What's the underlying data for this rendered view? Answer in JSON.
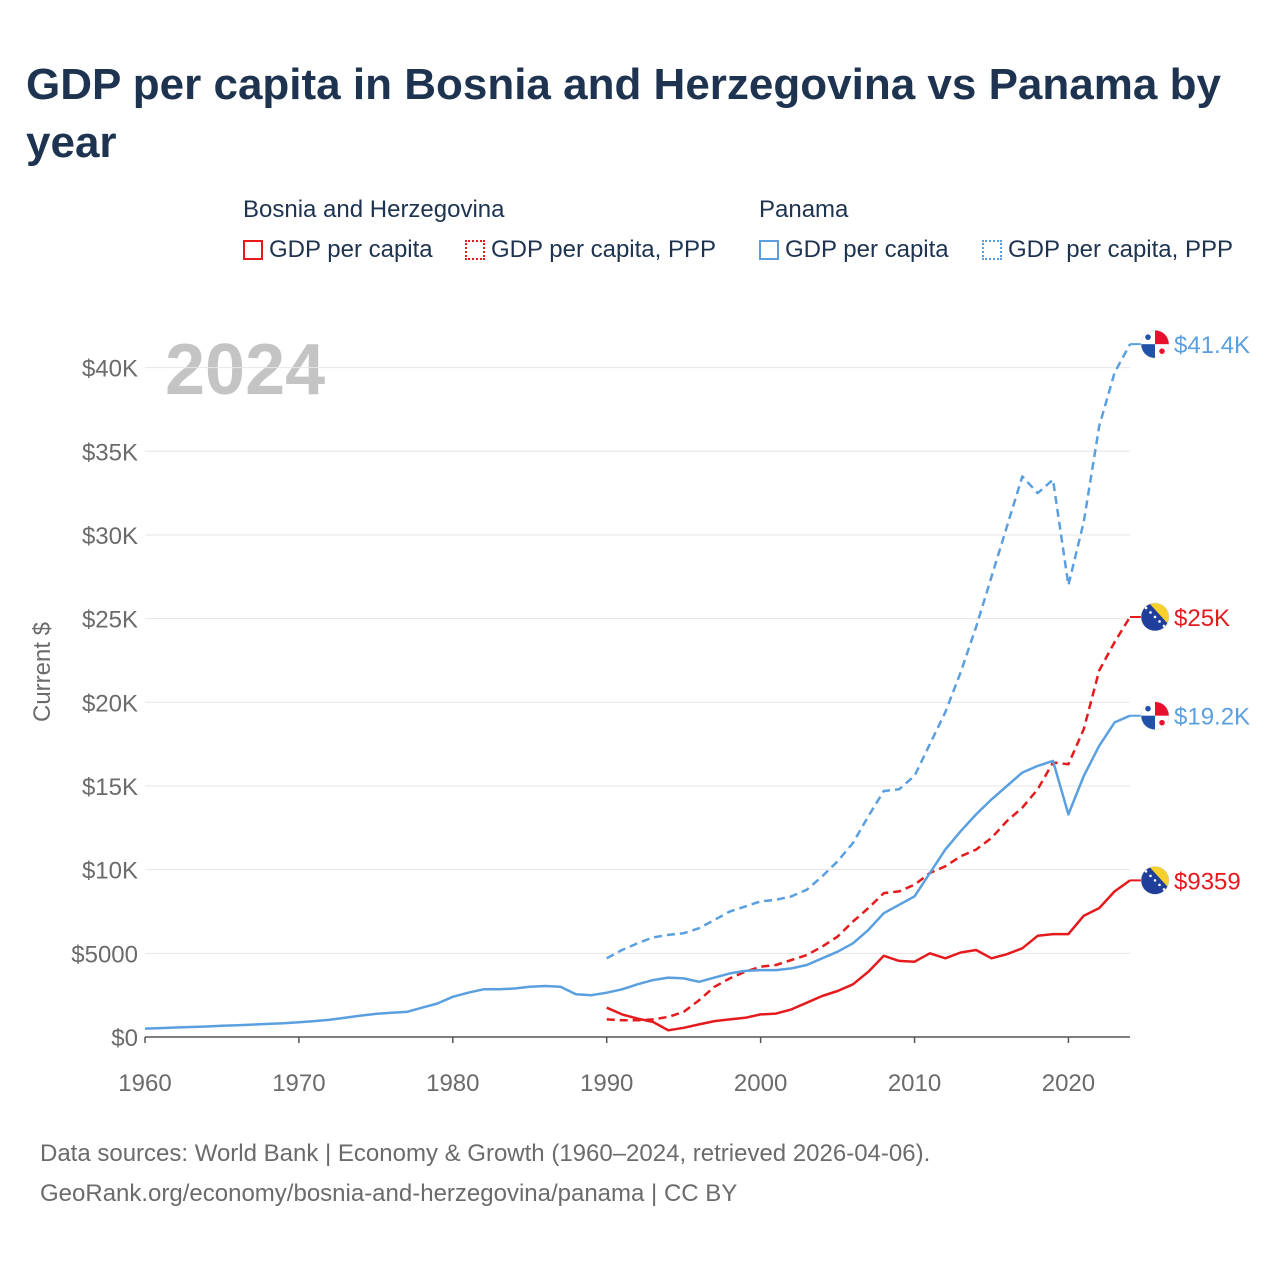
{
  "title": "GDP per capita in Bosnia and Herzegovina vs Panama by year",
  "legend": {
    "groups": [
      {
        "name": "Bosnia and Herzegovina",
        "items": [
          {
            "label": "GDP per capita",
            "style": "solid",
            "color": "#e41a1c"
          },
          {
            "label": "GDP per capita, PPP",
            "style": "dotted",
            "color": "#e41a1c"
          }
        ]
      },
      {
        "name": "Panama",
        "items": [
          {
            "label": "GDP per capita",
            "style": "solid",
            "color": "#5aa0e0"
          },
          {
            "label": "GDP per capita, PPP",
            "style": "dotted",
            "color": "#5aa0e0"
          }
        ]
      }
    ]
  },
  "footer": {
    "line1": "Data sources: World Bank | Economy & Growth (1960–2024, retrieved 2026-04-06).",
    "line2": "GeoRank.org/economy/bosnia-and-herzegovina/panama | CC BY"
  },
  "chart_data": {
    "type": "line",
    "year_label": "2024",
    "ylabel": "Current $",
    "xlim": [
      1960,
      2024
    ],
    "ylim": [
      0,
      42000
    ],
    "x_ticks": [
      1960,
      1970,
      1980,
      1990,
      2000,
      2010,
      2020
    ],
    "y_ticks": [
      {
        "value": 0,
        "label": "$0"
      },
      {
        "value": 5000,
        "label": "$5000"
      },
      {
        "value": 10000,
        "label": "$10K"
      },
      {
        "value": 15000,
        "label": "$15K"
      },
      {
        "value": 20000,
        "label": "$20K"
      },
      {
        "value": 25000,
        "label": "$25K"
      },
      {
        "value": 30000,
        "label": "$30K"
      },
      {
        "value": 35000,
        "label": "$35K"
      },
      {
        "value": 40000,
        "label": "$40K"
      }
    ],
    "series": [
      {
        "name": "Panama GDP per capita, PPP",
        "color": "#5aa0e0",
        "dash": "dashed",
        "end_label": "$41.4K",
        "flag": "panama",
        "start_year": 1990,
        "values": [
          4700,
          5200,
          5600,
          5950,
          6100,
          6200,
          6500,
          7000,
          7500,
          7800,
          8100,
          8200,
          8400,
          8800,
          9600,
          10500,
          11600,
          13200,
          14700,
          14800,
          15600,
          17500,
          19400,
          21800,
          24500,
          27500,
          30500,
          33500,
          32500,
          33300,
          27000,
          30800,
          36500,
          39700,
          41400
        ]
      },
      {
        "name": "Bosnia and Herzegovina GDP per capita, PPP",
        "color": "#e41a1c",
        "dash": "dashed",
        "end_label": "$25K",
        "flag": "bosnia",
        "start_year": 1990,
        "values": [
          1050,
          1000,
          1000,
          1050,
          1200,
          1500,
          2200,
          3000,
          3500,
          3900,
          4200,
          4300,
          4600,
          4900,
          5400,
          6000,
          6900,
          7700,
          8600,
          8700,
          9100,
          9800,
          10200,
          10800,
          11200,
          11900,
          12900,
          13700,
          14800,
          16400,
          16300,
          18400,
          21900,
          23600,
          25100
        ]
      },
      {
        "name": "Panama GDP per capita",
        "color": "#5aa0e0",
        "dash": "solid",
        "end_label": "$19.2K",
        "flag": "panama",
        "start_year": 1960,
        "values": [
          500,
          530,
          570,
          600,
          630,
          670,
          700,
          740,
          780,
          820,
          880,
          950,
          1030,
          1150,
          1280,
          1380,
          1450,
          1500,
          1750,
          2000,
          2400,
          2650,
          2850,
          2850,
          2900,
          3000,
          3050,
          3000,
          2550,
          2500,
          2650,
          2850,
          3150,
          3400,
          3550,
          3500,
          3300,
          3550,
          3800,
          3950,
          4000,
          4000,
          4100,
          4300,
          4700,
          5100,
          5600,
          6400,
          7400,
          7900,
          8400,
          9800,
          11200,
          12300,
          13300,
          14200,
          15000,
          15800,
          16200,
          16500,
          13300,
          15600,
          17400,
          18800,
          19200
        ]
      },
      {
        "name": "Bosnia and Herzegovina GDP per capita",
        "color": "#e41a1c",
        "dash": "solid",
        "end_label": "$9359",
        "flag": "bosnia",
        "start_year": 1990,
        "values": [
          1750,
          1350,
          1100,
          900,
          400,
          550,
          750,
          950,
          1050,
          1150,
          1350,
          1400,
          1650,
          2050,
          2450,
          2750,
          3150,
          3900,
          4850,
          4550,
          4500,
          5000,
          4700,
          5050,
          5200,
          4700,
          4950,
          5300,
          6050,
          6150,
          6150,
          7250,
          7700,
          8700,
          9359
        ]
      }
    ]
  }
}
